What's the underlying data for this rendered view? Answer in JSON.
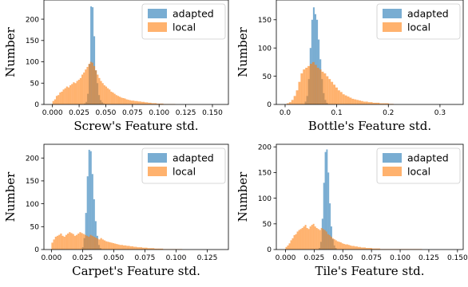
{
  "colors": {
    "adapted": "#1f77b4",
    "local": "#ff7f0e",
    "bar_alpha": 0.6
  },
  "chart_data": [
    {
      "type": "histogram",
      "xlabel": "Screw's Feature std.",
      "ylabel": "Number",
      "xlim": [
        -0.008,
        0.165
      ],
      "ylim": [
        0,
        245
      ],
      "xticks": [
        0,
        0.025,
        0.05,
        0.075,
        0.1,
        0.125,
        0.15
      ],
      "xtick_labels": [
        "0.000",
        "0.025",
        "0.050",
        "0.075",
        "0.100",
        "0.125",
        "0.150"
      ],
      "yticks": [
        0,
        50,
        100,
        150,
        200
      ],
      "yticks_labels": [
        "0",
        "50",
        "100",
        "150",
        "200"
      ],
      "legend": {
        "position": "top-right",
        "entries": [
          "adapted",
          "local"
        ]
      },
      "series": [
        {
          "name": "adapted",
          "color_key": "adapted",
          "bin_start": 0.0295,
          "bin_width": 0.0015,
          "counts": [
            2,
            6,
            25,
            95,
            230,
            228,
            160,
            80,
            50,
            22,
            10,
            5,
            2
          ]
        },
        {
          "name": "local",
          "color_key": "local",
          "bin_start": 0.0,
          "bin_width": 0.0016,
          "counts": [
            8,
            12,
            20,
            22,
            28,
            30,
            35,
            38,
            42,
            40,
            45,
            48,
            52,
            50,
            55,
            58,
            62,
            70,
            75,
            82,
            88,
            95,
            100,
            98,
            90,
            80,
            70,
            62,
            55,
            50,
            45,
            42,
            38,
            35,
            30,
            28,
            25,
            22,
            20,
            18,
            16,
            15,
            14,
            12,
            11,
            10,
            9,
            9,
            8,
            8,
            7,
            7,
            6,
            6,
            5,
            5,
            4,
            4,
            3,
            3,
            3,
            2,
            2,
            2,
            2,
            1,
            1,
            1,
            1,
            1,
            1,
            1
          ]
        }
      ]
    },
    {
      "type": "histogram",
      "xlabel": "Bottle's Feature std.",
      "ylabel": "Number",
      "xlim": [
        -0.017,
        0.345
      ],
      "ylim": [
        0,
        185
      ],
      "xticks": [
        0,
        0.1,
        0.2,
        0.3
      ],
      "xtick_labels": [
        "0.0",
        "0.1",
        "0.2",
        "0.3"
      ],
      "yticks": [
        0,
        50,
        100,
        150
      ],
      "yticks_labels": [
        "0",
        "50",
        "100",
        "150"
      ],
      "legend": {
        "position": "top-right",
        "entries": [
          "adapted",
          "local"
        ]
      },
      "series": [
        {
          "name": "adapted",
          "color_key": "adapted",
          "bin_start": 0.038,
          "bin_width": 0.0032,
          "counts": [
            5,
            15,
            45,
            100,
            150,
            172,
            160,
            150,
            115,
            80,
            45,
            20,
            8,
            3
          ]
        },
        {
          "name": "local",
          "color_key": "local",
          "bin_start": 0.003,
          "bin_width": 0.0045,
          "counts": [
            2,
            4,
            8,
            15,
            25,
            40,
            55,
            62,
            65,
            68,
            72,
            75,
            70,
            65,
            62,
            58,
            55,
            50,
            45,
            40,
            35,
            30,
            25,
            22,
            18,
            16,
            14,
            12,
            10,
            9,
            8,
            7,
            6,
            5,
            5,
            4,
            4,
            3,
            3,
            3,
            2,
            2,
            2,
            2,
            1,
            1
          ]
        }
      ]
    },
    {
      "type": "histogram",
      "xlabel": "Carpet's Feature std.",
      "ylabel": "Number",
      "xlim": [
        -0.006,
        0.142
      ],
      "ylim": [
        0,
        230
      ],
      "xticks": [
        0,
        0.025,
        0.05,
        0.075,
        0.1,
        0.125
      ],
      "xtick_labels": [
        "0.000",
        "0.025",
        "0.050",
        "0.075",
        "0.100",
        "0.125"
      ],
      "yticks": [
        0,
        50,
        100,
        150,
        200
      ],
      "yticks_labels": [
        "0",
        "50",
        "100",
        "150",
        "200"
      ],
      "legend": {
        "position": "top-right",
        "entries": [
          "adapted",
          "local"
        ]
      },
      "series": [
        {
          "name": "adapted",
          "color_key": "adapted",
          "bin_start": 0.0245,
          "bin_width": 0.0013,
          "counts": [
            5,
            25,
            80,
            160,
            218,
            215,
            165,
            110,
            62,
            30,
            10,
            3
          ]
        },
        {
          "name": "local",
          "color_key": "local",
          "bin_start": 0.0,
          "bin_width": 0.0014,
          "counts": [
            15,
            22,
            28,
            30,
            32,
            35,
            30,
            28,
            32,
            35,
            38,
            36,
            34,
            30,
            32,
            35,
            38,
            36,
            34,
            32,
            30,
            28,
            32,
            30,
            28,
            26,
            24,
            22,
            25,
            22,
            20,
            18,
            17,
            16,
            15,
            14,
            13,
            12,
            11,
            10,
            10,
            9,
            9,
            8,
            8,
            7,
            7,
            6,
            6,
            5,
            5,
            5,
            4,
            4,
            4,
            3,
            3,
            3,
            3,
            2,
            2,
            2,
            2,
            2,
            1,
            1,
            1,
            1,
            1,
            1,
            1,
            1,
            1,
            1,
            1
          ]
        }
      ]
    },
    {
      "type": "histogram",
      "xlabel": "Tile's Feature std.",
      "ylabel": "Number",
      "xlim": [
        -0.008,
        0.155
      ],
      "ylim": [
        0,
        205
      ],
      "xticks": [
        0,
        0.025,
        0.05,
        0.075,
        0.1,
        0.125,
        0.15
      ],
      "xtick_labels": [
        "0.000",
        "0.025",
        "0.050",
        "0.075",
        "0.100",
        "0.125",
        "0.150"
      ],
      "yticks": [
        0,
        50,
        100,
        150,
        200
      ],
      "yticks_labels": [
        "0",
        "50",
        "100",
        "150",
        "200"
      ],
      "legend": {
        "position": "top-right",
        "entries": [
          "adapted",
          "local"
        ]
      },
      "series": [
        {
          "name": "adapted",
          "color_key": "adapted",
          "bin_start": 0.029,
          "bin_width": 0.0013,
          "counts": [
            3,
            15,
            60,
            130,
            190,
            195,
            150,
            90,
            45,
            20,
            8,
            3
          ]
        },
        {
          "name": "local",
          "color_key": "local",
          "bin_start": 0.0,
          "bin_width": 0.0014,
          "counts": [
            5,
            8,
            12,
            18,
            22,
            28,
            30,
            35,
            38,
            40,
            42,
            45,
            48,
            42,
            40,
            45,
            48,
            50,
            45,
            42,
            40,
            38,
            42,
            40,
            38,
            35,
            30,
            28,
            25,
            22,
            20,
            18,
            16,
            15,
            14,
            12,
            11,
            10,
            10,
            9,
            8,
            7,
            7,
            6,
            6,
            5,
            5,
            4,
            4,
            4,
            3,
            3,
            3,
            3,
            2,
            2,
            2,
            2,
            2,
            1,
            1,
            1,
            1,
            1,
            1,
            1,
            1,
            1,
            1,
            1,
            1,
            1,
            1,
            1,
            1,
            1,
            1,
            1,
            1,
            1,
            1,
            1,
            1,
            1,
            1
          ]
        }
      ]
    }
  ]
}
